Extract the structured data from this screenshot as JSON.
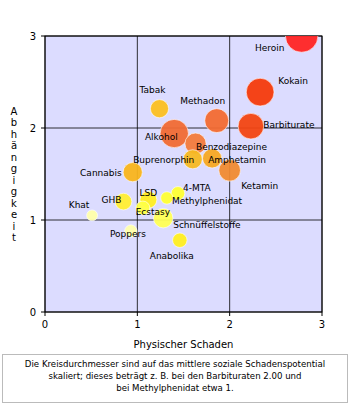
{
  "chart_data": {
    "type": "bubble",
    "x_label": "Physischer Schaden",
    "y_label": "Abhängigkeit",
    "caption": [
      "Die Kreisdurchmesser sind auf das mittlere soziale Schadenspotential",
      "skaliert; dieses beträgt z. B. bei den Barbituraten 2.00 und",
      "bei Methylphenidat etwa 1."
    ],
    "categories": [
      "Heroin",
      "Kokain",
      "Barbiturate",
      "Methadon",
      "Alkohol",
      "Benzodiazepine",
      "Amphetamin",
      "Buprenorphin",
      "Ketamin",
      "Tabak",
      "Cannabis",
      "LSD",
      "4-MTA",
      "Methylphenidat",
      "GHB",
      "Ecstasy",
      "Schnüffelstoffe",
      "Poppers",
      "Khat",
      "Anabolika"
    ],
    "x": [
      2.78,
      2.33,
      2.23,
      1.86,
      1.4,
      1.63,
      1.81,
      1.6,
      2.0,
      1.24,
      0.95,
      1.12,
      1.44,
      1.32,
      0.85,
      1.06,
      1.28,
      0.93,
      0.51,
      1.46
    ],
    "values": [
      3.0,
      2.39,
      2.02,
      2.08,
      1.94,
      1.83,
      1.67,
      1.66,
      1.54,
      2.21,
      1.52,
      1.22,
      1.29,
      1.24,
      1.2,
      1.13,
      1.02,
      0.88,
      1.05,
      0.78
    ],
    "sizes": [
      2.54,
      2.17,
      2.0,
      1.87,
      2.21,
      1.65,
      1.5,
      1.49,
      1.69,
      1.42,
      1.5,
      1.32,
      1.06,
      0.97,
      1.3,
      1.09,
      1.52,
      0.97,
      0.85,
      1.13
    ],
    "colors": [
      "#ff2424",
      "#f43a0c",
      "#f24412",
      "#f26a32",
      "#f06a34",
      "#f27a3c",
      "#f6a824",
      "#f6b822",
      "#f08a32",
      "#fbbf22",
      "#f8b41c",
      "#ffee22",
      "#ffff33",
      "#ffff33",
      "#ffee33",
      "#ffff44",
      "#ffff55",
      "#ffffaa",
      "#ffffaa",
      "#ffee22"
    ],
    "xlim": [
      0,
      3
    ],
    "ylim": [
      0,
      3
    ],
    "xticks": [
      0,
      1,
      2,
      3
    ],
    "yticks": [
      0,
      1,
      2,
      3
    ],
    "grid": true
  }
}
